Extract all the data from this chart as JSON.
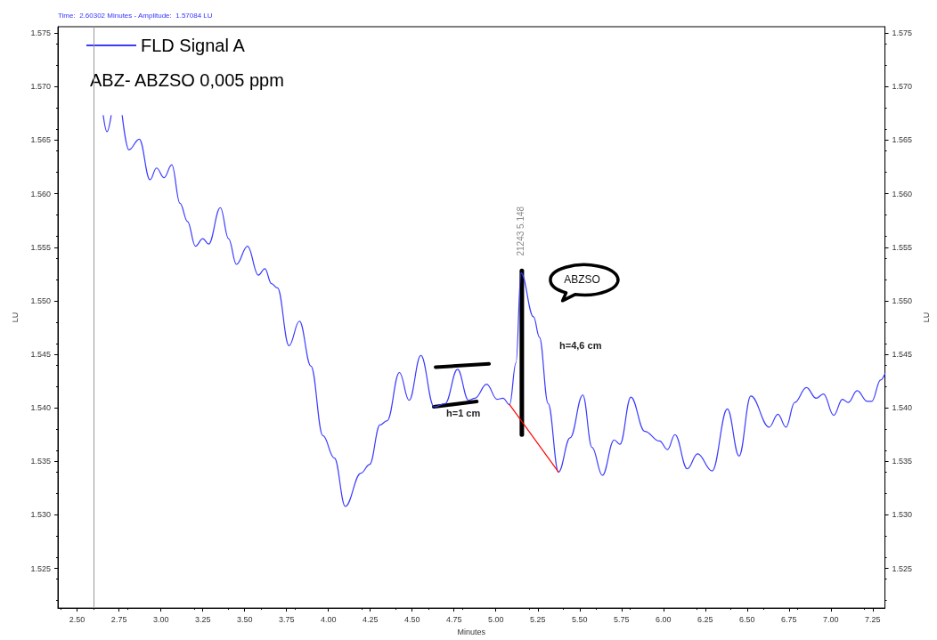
{
  "chart_data": {
    "type": "line",
    "subtitle": "ABZ- ABZSO 0,005 ppm",
    "xlabel": "Minutes",
    "ylabel": "LU",
    "y2label": "LU",
    "annotations": [
      "Time:  2.60302 Minutes - Amplitude:  1.57084 LU",
      "21243 5.148",
      "ABZSO",
      "h=4,6 cm",
      {
        "text": "h=1 cm",
        "x": 4.837,
        "y": 1.5407
      }
    ],
    "series": [
      {
        "name": "FLD Signal A",
        "color": "#3b3bff",
        "x": [
          2.656,
          2.678,
          2.703,
          2.72,
          2.769,
          2.809,
          2.871,
          2.935,
          2.974,
          3.019,
          3.065,
          3.114,
          3.159,
          3.206,
          3.25,
          3.285,
          3.355,
          3.404,
          3.451,
          3.517,
          3.582,
          3.621,
          3.66,
          3.696,
          3.765,
          3.827,
          3.896,
          3.967,
          4.036,
          4.101,
          4.194,
          4.246,
          4.308,
          4.351,
          4.424,
          4.482,
          4.552,
          4.631,
          4.697,
          4.771,
          4.837,
          4.875,
          4.945,
          5.007,
          5.042,
          5.082,
          5.12,
          5.15,
          5.225,
          5.26,
          5.312,
          5.374,
          5.443,
          5.519,
          5.574,
          5.636,
          5.706,
          5.741,
          5.806,
          5.889,
          5.977,
          6.025,
          6.069,
          6.143,
          6.204,
          6.291,
          6.382,
          6.452,
          6.522,
          6.632,
          6.684,
          6.732,
          6.784,
          6.854,
          6.912,
          6.956,
          7.017,
          7.069,
          7.104,
          7.157,
          7.218,
          7.244,
          7.297,
          7.323
        ],
        "values": [
          1.5673,
          1.5658,
          1.5673,
          null,
          1.5673,
          1.5641,
          1.5651,
          1.5613,
          1.5624,
          1.5615,
          1.5627,
          1.5591,
          1.5574,
          1.5551,
          1.5558,
          1.5553,
          1.5587,
          1.5558,
          1.5534,
          1.5551,
          1.5524,
          1.553,
          1.5516,
          1.5512,
          1.5458,
          1.5481,
          1.5439,
          1.5374,
          1.5353,
          1.5308,
          1.5339,
          1.5347,
          1.5384,
          1.5388,
          1.5433,
          1.5407,
          1.5449,
          1.5401,
          1.5404,
          1.5436,
          1.5407,
          1.5409,
          1.5422,
          1.5408,
          1.5409,
          1.5403,
          1.5442,
          1.5526,
          1.5485,
          1.5466,
          1.5404,
          1.534,
          1.5372,
          1.5412,
          1.5363,
          1.5337,
          1.537,
          1.5366,
          1.541,
          1.5378,
          1.5369,
          1.5361,
          1.5375,
          1.5343,
          1.5357,
          1.5341,
          1.5399,
          1.5355,
          1.5411,
          1.5382,
          1.5394,
          1.5382,
          1.5405,
          1.5419,
          1.5409,
          1.5413,
          1.5393,
          1.5408,
          1.5405,
          1.5416,
          1.5406,
          1.5406,
          1.5426,
          1.5432
        ]
      },
      {
        "color": "#ff0000",
        "x": [
          5.082,
          5.374
        ],
        "values": [
          1.5403,
          1.534
        ]
      }
    ],
    "xlim": [
      2.385,
      7.323
    ],
    "xticks": [
      {
        "value": 2.5,
        "label": "2.50"
      },
      2.75,
      {
        "value": 3,
        "label": "3.00"
      },
      3.25,
      {
        "value": 3.5,
        "label": "3.50"
      },
      3.75,
      {
        "value": 4,
        "label": "4.00"
      },
      4.25,
      {
        "value": 4.5,
        "label": "4.50"
      },
      4.75,
      {
        "value": 5,
        "label": "5.00"
      },
      5.25,
      {
        "value": 5.5,
        "label": "5.50"
      },
      5.75,
      {
        "value": 6,
        "label": "6.00"
      },
      6.25,
      {
        "value": 6.5,
        "label": "6.50"
      },
      6.75,
      {
        "value": 7,
        "label": "7.00"
      },
      7.25
    ],
    "ylim": [
      1.5213,
      1.5756
    ],
    "yticks": [
      1.525,
      {
        "value": 1.53,
        "label": "1.530"
      },
      1.535,
      {
        "value": 1.54,
        "label": "1.540"
      },
      1.545,
      {
        "value": 1.55,
        "label": "1.550"
      },
      1.555,
      {
        "value": 1.56,
        "label": "1.560"
      },
      1.565,
      {
        "value": 1.57,
        "label": "1.570"
      },
      1.575
    ],
    "y2lim": [
      1.5213,
      1.5756
    ],
    "y2ticks": [
      1.525,
      {
        "value": 1.53,
        "label": "1.530"
      },
      1.535,
      {
        "value": 1.54,
        "label": "1.540"
      },
      1.545,
      {
        "value": 1.55,
        "label": "1.550"
      },
      1.555,
      {
        "value": 1.56,
        "label": "1.560"
      },
      1.565,
      {
        "value": 1.57,
        "label": "1.570"
      },
      1.575
    ],
    "ref_lines": [
      {
        "axis": "x",
        "value": 2.603,
        "color": "#9a9a9a"
      }
    ],
    "grid": false,
    "legend": "top left",
    "marker": "none",
    "line_style": "solid"
  }
}
